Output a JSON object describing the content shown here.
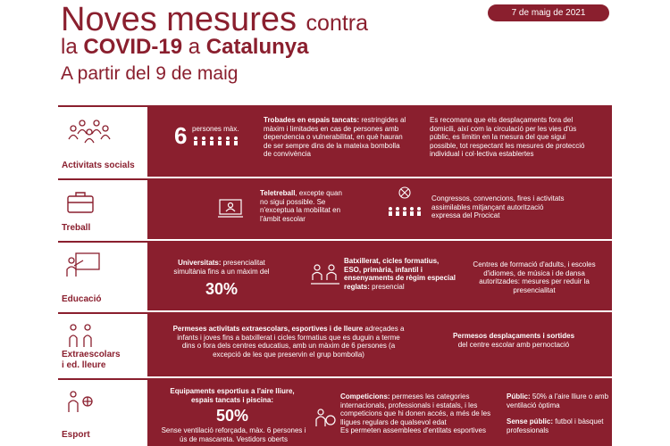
{
  "header": {
    "line1_main": "Noves mesures",
    "line1_small": "contra",
    "line2_pre": "la",
    "line2_covid": "COVID-19",
    "line2_mid": "a",
    "line2_place": "Catalunya",
    "line3": "A partir del 9 de maig",
    "date": "7 de maig de 2021"
  },
  "rows": {
    "social": {
      "label": "Activitats socials",
      "count": "6",
      "count_label": "persones màx.",
      "meeting_bold": "Trobades en espais tancats:",
      "meeting_rest": " restringides al màxim i limitades en cas de persones amb dependencia o vulnerabilitat, en què hauran de ser sempre dins de la mateixa bombolla de convivència",
      "travel": "Es recomana que els desplaçaments fora del domicili, així com la circulació per les vies d'ús públic, es limitin en la mesura del que sigui possible, tot respectant les mesures de protecció individual i col·lectiva establertes"
    },
    "work": {
      "label": "Treball",
      "telework_bold": "Teletreball",
      "telework_rest": ", excepte quan no sigui possible. Se n'exceptua la mobilitat en l'àmbit escolar",
      "congress": "Congressos, convencions, fires i activitats assimilables mitjançant autorització expressa del Procicat"
    },
    "education": {
      "label": "Educació",
      "uni_bold": "Universitats:",
      "uni_rest": " presencialitat simultània fins a un màxim del",
      "uni_pct": "30%",
      "bat_bold": "Batxillerat, cicles formatius, ESO, primària, infantil i ensenyaments de règim especial reglats:",
      "bat_rest": " presencial",
      "adults": "Centres de formació d'adults, i escoles d'idiomes, de música i de dansa autoritzades: mesures per reduir la presencialitat"
    },
    "extra": {
      "label_1": "Extraescolars",
      "label_2": "i ed. lleure",
      "left_bold": "Permeses activitats extraescolars, esportives i de lleure",
      "left_rest": " adreçades a infants i joves fins a batxillerat i cicles formatius que es duguin a terme dins o fora dels centres educatius, amb un màxim de 6 persones (a excepció de les que preservin el grup bombolla)",
      "right_bold": "Permesos desplaçaments i sortides",
      "right_rest": " del centre escolar amb pernoctació"
    },
    "sport": {
      "label": "Esport",
      "eq_bold": "Equipaments esportius a l'aire lliure, espais tancats i piscina:",
      "eq_pct": "50%",
      "eq_rest": "Sense ventilació reforçada, màx. 6 persones i ús de mascareta. Vestidors oberts",
      "comp_bold": "Competicions:",
      "comp_rest": " permeses les categories internacionals, professionals i estatals, i les competicions que hi donen accés, a més de les lligues regulars de qualsevol edat",
      "comp_extra": "Es permeten assemblees d'entitats esportives",
      "pub_bold": "Públic:",
      "pub_rest": " 50% a l'aire lliure o amb ventilació òptima",
      "nopub_bold": "Sense públic:",
      "nopub_rest": " futbol i bàsquet professionals"
    }
  },
  "colors": {
    "accent": "#8a1f2e",
    "panel_text": "#ffffff"
  }
}
